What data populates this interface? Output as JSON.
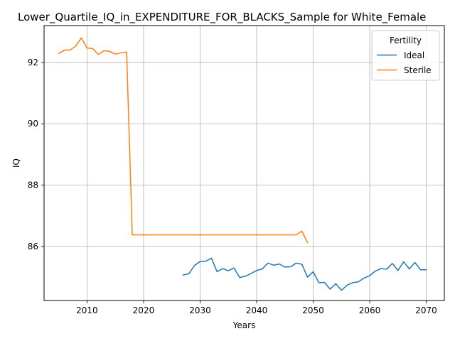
{
  "chart_data": {
    "type": "line",
    "title": "Lower_Quartile_IQ_in_EXPENDITURE_FOR_BLACKS_Sample for White_Female",
    "xlabel": "Years",
    "ylabel": "IQ",
    "xlim": [
      2002.4,
      2073.2
    ],
    "ylim": [
      84.24,
      93.2
    ],
    "xticks": [
      2010,
      2020,
      2030,
      2040,
      2050,
      2060,
      2070
    ],
    "yticks": [
      86,
      88,
      90,
      92
    ],
    "grid": true,
    "legend": {
      "title": "Fertility",
      "location": "top-right"
    },
    "series": [
      {
        "name": "Ideal",
        "color": "#1f77b4",
        "x": [
          2027,
          2028,
          2029,
          2030,
          2031,
          2032,
          2033,
          2034,
          2035,
          2036,
          2037,
          2038,
          2039,
          2040,
          2041,
          2042,
          2043,
          2044,
          2045,
          2046,
          2047,
          2048,
          2049,
          2050,
          2051,
          2052,
          2053,
          2054,
          2055,
          2056,
          2057,
          2058,
          2059,
          2060,
          2061,
          2062,
          2063,
          2064,
          2065,
          2066,
          2067,
          2068,
          2069,
          2070
        ],
        "y": [
          85.07,
          85.11,
          85.38,
          85.51,
          85.52,
          85.62,
          85.18,
          85.28,
          85.21,
          85.3,
          84.99,
          85.03,
          85.12,
          85.22,
          85.27,
          85.46,
          85.39,
          85.43,
          85.33,
          85.34,
          85.46,
          85.42,
          85.0,
          85.18,
          84.82,
          84.83,
          84.61,
          84.79,
          84.57,
          84.74,
          84.82,
          84.85,
          84.97,
          85.05,
          85.2,
          85.28,
          85.26,
          85.45,
          85.22,
          85.5,
          85.27,
          85.48,
          85.24,
          85.24
        ]
      },
      {
        "name": "Sterile",
        "color": "#ff7f0e",
        "x": [
          2005,
          2006,
          2007,
          2008,
          2009,
          2010,
          2011,
          2012,
          2013,
          2014,
          2015,
          2016,
          2017,
          2018,
          2019,
          2020,
          2021,
          2022,
          2023,
          2024,
          2025,
          2026,
          2027,
          2028,
          2029,
          2030,
          2031,
          2032,
          2033,
          2034,
          2035,
          2036,
          2037,
          2038,
          2039,
          2040,
          2041,
          2042,
          2043,
          2044,
          2045,
          2046,
          2047,
          2048,
          2049
        ],
        "y": [
          92.29,
          92.4,
          92.4,
          92.53,
          92.8,
          92.47,
          92.45,
          92.26,
          92.38,
          92.36,
          92.27,
          92.31,
          92.34,
          86.38,
          86.38,
          86.38,
          86.38,
          86.38,
          86.38,
          86.38,
          86.38,
          86.38,
          86.38,
          86.38,
          86.38,
          86.38,
          86.38,
          86.38,
          86.38,
          86.38,
          86.38,
          86.38,
          86.38,
          86.38,
          86.38,
          86.38,
          86.38,
          86.38,
          86.38,
          86.38,
          86.38,
          86.38,
          86.38,
          86.5,
          86.13
        ]
      }
    ]
  }
}
